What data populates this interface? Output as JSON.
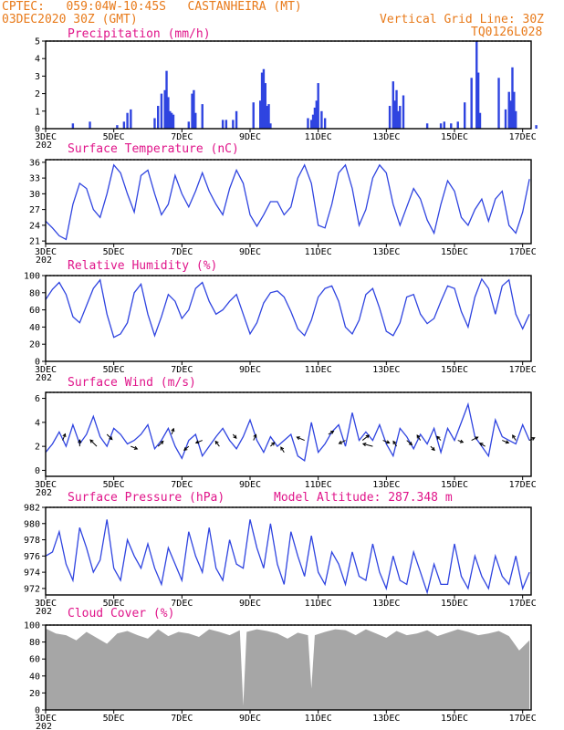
{
  "header": {
    "line1_left": "CPTEC:   059:04W-10:45S   CASTANHEIRA (MT)",
    "line2_left": "03DEC2020 30Z (GMT)",
    "line1_right": "Vertical Grid Line: 30Z",
    "line2_right": "TQ0126L028"
  },
  "colors": {
    "header": "#e87a1a",
    "title": "#e0158a",
    "line": "#2f44e0",
    "bar": "#2f44e0",
    "cloud": "#a6a6a6",
    "arrow": "#000000"
  },
  "x_axis": {
    "days": [
      3,
      17.25
    ],
    "tick_labels": [
      "3DEC",
      "5DEC",
      "7DEC",
      "9DEC",
      "11DEC",
      "13DEC",
      "15DEC",
      "17DEC"
    ],
    "tick_days": [
      3,
      5,
      7,
      9,
      11,
      13,
      15,
      17
    ],
    "stub_label": "202"
  },
  "chart_data": [
    {
      "type": "bar",
      "title": "Precipitation (mm/h)",
      "ylim": [
        0,
        5
      ],
      "yticks": [
        0,
        1,
        2,
        3,
        4,
        5
      ],
      "x_days": [
        3.8,
        4.3,
        5.1,
        5.3,
        5.4,
        5.5,
        6.2,
        6.3,
        6.4,
        6.5,
        6.55,
        6.6,
        6.65,
        6.7,
        6.75,
        7.2,
        7.3,
        7.35,
        7.4,
        7.6,
        8.2,
        8.3,
        8.5,
        8.6,
        9.1,
        9.3,
        9.35,
        9.4,
        9.45,
        9.5,
        9.55,
        9.6,
        10.7,
        10.8,
        10.85,
        10.9,
        10.95,
        11.0,
        11.1,
        11.2,
        13.1,
        13.2,
        13.25,
        13.3,
        13.35,
        13.4,
        13.5,
        14.2,
        14.6,
        14.7,
        14.9,
        15.1,
        15.3,
        15.5,
        15.65,
        15.7,
        15.75,
        16.3,
        16.5,
        16.6,
        16.65,
        16.7,
        16.75,
        16.8,
        17.4
      ],
      "values": [
        0.3,
        0.4,
        0.2,
        0.4,
        0.9,
        1.1,
        0.6,
        1.3,
        2.0,
        2.2,
        3.3,
        1.8,
        1.0,
        0.9,
        0.8,
        0.4,
        2.0,
        2.2,
        0.9,
        1.4,
        0.5,
        0.5,
        0.5,
        1.0,
        1.5,
        1.6,
        3.2,
        3.4,
        2.6,
        1.3,
        1.4,
        0.3,
        0.6,
        0.5,
        0.8,
        1.2,
        1.6,
        2.6,
        1.0,
        0.6,
        1.3,
        2.7,
        1.6,
        2.2,
        1.0,
        1.3,
        1.9,
        0.3,
        0.3,
        0.4,
        0.3,
        0.4,
        1.5,
        2.9,
        5.0,
        3.2,
        0.9,
        2.9,
        1.1,
        2.1,
        1.6,
        3.5,
        2.1,
        1.0,
        0.2
      ]
    },
    {
      "type": "line",
      "title": "Surface Temperature (nC)",
      "ylim": [
        20.5,
        36.5
      ],
      "yticks": [
        21,
        24,
        27,
        30,
        33,
        36
      ],
      "x_days": [
        3.0,
        3.2,
        3.4,
        3.6,
        3.8,
        4.0,
        4.2,
        4.4,
        4.6,
        4.8,
        5.0,
        5.2,
        5.4,
        5.6,
        5.8,
        6.0,
        6.2,
        6.4,
        6.6,
        6.8,
        7.0,
        7.2,
        7.4,
        7.6,
        7.8,
        8.0,
        8.2,
        8.4,
        8.6,
        8.8,
        9.0,
        9.2,
        9.4,
        9.6,
        9.8,
        10.0,
        10.2,
        10.4,
        10.6,
        10.8,
        11.0,
        11.2,
        11.4,
        11.6,
        11.8,
        12.0,
        12.2,
        12.4,
        12.6,
        12.8,
        13.0,
        13.2,
        13.4,
        13.6,
        13.8,
        14.0,
        14.2,
        14.4,
        14.6,
        14.8,
        15.0,
        15.2,
        15.4,
        15.6,
        15.8,
        16.0,
        16.2,
        16.4,
        16.6,
        16.8,
        17.0,
        17.2
      ],
      "values": [
        24.8,
        23.5,
        22.0,
        21.3,
        28.0,
        32.0,
        31.0,
        27.0,
        25.5,
        30.0,
        35.5,
        34.0,
        30.0,
        26.5,
        33.5,
        34.5,
        30.0,
        26.0,
        28.0,
        33.5,
        30.0,
        27.5,
        30.5,
        34.0,
        30.5,
        28.0,
        26.0,
        31.0,
        34.5,
        32.0,
        26.0,
        23.8,
        26.0,
        28.5,
        28.5,
        26.0,
        27.5,
        33.0,
        35.5,
        32.0,
        24.0,
        23.5,
        28.0,
        34.0,
        35.5,
        31.0,
        24.0,
        27.0,
        33.0,
        35.5,
        34.0,
        28.0,
        24.0,
        27.5,
        31.0,
        29.0,
        25.0,
        22.5,
        28.0,
        32.5,
        30.5,
        25.5,
        24.0,
        27.0,
        29.0,
        24.8,
        29.0,
        30.5,
        24.0,
        22.5,
        26.5,
        32.8
      ]
    },
    {
      "type": "line",
      "title": "Relative Humidity (%)",
      "ylim": [
        0,
        100
      ],
      "yticks": [
        0,
        20,
        40,
        60,
        80,
        100
      ],
      "x_days": [
        3.0,
        3.2,
        3.4,
        3.6,
        3.8,
        4.0,
        4.2,
        4.4,
        4.6,
        4.8,
        5.0,
        5.2,
        5.4,
        5.6,
        5.8,
        6.0,
        6.2,
        6.4,
        6.6,
        6.8,
        7.0,
        7.2,
        7.4,
        7.6,
        7.8,
        8.0,
        8.2,
        8.4,
        8.6,
        8.8,
        9.0,
        9.2,
        9.4,
        9.6,
        9.8,
        10.0,
        10.2,
        10.4,
        10.6,
        10.8,
        11.0,
        11.2,
        11.4,
        11.6,
        11.8,
        12.0,
        12.2,
        12.4,
        12.6,
        12.8,
        13.0,
        13.2,
        13.4,
        13.6,
        13.8,
        14.0,
        14.2,
        14.4,
        14.6,
        14.8,
        15.0,
        15.2,
        15.4,
        15.6,
        15.8,
        16.0,
        16.2,
        16.4,
        16.6,
        16.8,
        17.0,
        17.2
      ],
      "values": [
        72,
        84,
        92,
        78,
        52,
        45,
        65,
        85,
        95,
        55,
        28,
        32,
        45,
        80,
        90,
        55,
        30,
        52,
        78,
        70,
        50,
        60,
        85,
        92,
        70,
        55,
        60,
        70,
        78,
        55,
        32,
        45,
        68,
        80,
        82,
        75,
        58,
        38,
        30,
        48,
        75,
        85,
        88,
        70,
        40,
        32,
        48,
        78,
        85,
        62,
        35,
        30,
        45,
        75,
        78,
        55,
        44,
        50,
        70,
        88,
        85,
        58,
        40,
        75,
        96,
        85,
        55,
        88,
        95,
        55,
        38,
        55
      ]
    },
    {
      "type": "line",
      "title": "Surface Wind (m/s)",
      "ylim": [
        -0.5,
        6.5
      ],
      "yticks": [
        0,
        2,
        4,
        6
      ],
      "x_days": [
        3.0,
        3.2,
        3.4,
        3.6,
        3.8,
        4.0,
        4.2,
        4.4,
        4.6,
        4.8,
        5.0,
        5.2,
        5.4,
        5.6,
        5.8,
        6.0,
        6.2,
        6.4,
        6.6,
        6.8,
        7.0,
        7.2,
        7.4,
        7.6,
        7.8,
        8.0,
        8.2,
        8.4,
        8.6,
        8.8,
        9.0,
        9.2,
        9.4,
        9.6,
        9.8,
        10.0,
        10.2,
        10.4,
        10.6,
        10.8,
        11.0,
        11.2,
        11.4,
        11.6,
        11.8,
        12.0,
        12.2,
        12.4,
        12.6,
        12.8,
        13.0,
        13.2,
        13.4,
        13.6,
        13.8,
        14.0,
        14.2,
        14.4,
        14.6,
        14.8,
        15.0,
        15.2,
        15.4,
        15.6,
        15.8,
        16.0,
        16.2,
        16.4,
        16.6,
        16.8,
        17.0,
        17.2
      ],
      "values": [
        1.5,
        2.2,
        3.2,
        2.0,
        3.8,
        2.2,
        3.0,
        4.5,
        2.8,
        2.0,
        3.5,
        3.0,
        2.2,
        2.5,
        3.0,
        3.8,
        1.8,
        2.5,
        3.5,
        2.0,
        1.0,
        2.5,
        3.0,
        1.2,
        2.0,
        2.8,
        3.5,
        2.5,
        1.8,
        2.8,
        4.2,
        2.5,
        1.5,
        2.8,
        2.0,
        2.5,
        3.0,
        1.2,
        0.8,
        4.0,
        1.5,
        2.2,
        3.2,
        3.8,
        2.0,
        4.8,
        2.5,
        3.2,
        2.5,
        3.8,
        2.2,
        1.2,
        3.5,
        2.8,
        1.8,
        3.0,
        2.2,
        3.5,
        1.5,
        3.5,
        2.5,
        4.0,
        5.5,
        2.8,
        2.0,
        1.2,
        4.2,
        2.8,
        2.5,
        2.2,
        3.8,
        2.5
      ],
      "arrows": {
        "x_days": [
          3.5,
          4.0,
          4.5,
          4.8,
          5.5,
          6.3,
          6.7,
          7.2,
          7.6,
          8.1,
          8.5,
          9.1,
          9.6,
          10.0,
          10.6,
          11.3,
          11.8,
          12.3,
          12.6,
          12.9,
          13.3,
          13.6,
          14.0,
          14.3,
          14.6,
          15.1,
          15.5,
          15.9,
          16.4,
          16.8,
          17.2
        ],
        "y_values": [
          2.5,
          2.0,
          2.0,
          3.0,
          2.0,
          2.0,
          3.0,
          2.0,
          2.5,
          2.0,
          3.0,
          2.5,
          2.0,
          1.5,
          2.5,
          3.0,
          2.5,
          2.5,
          2.0,
          2.5,
          2.0,
          2.5,
          2.5,
          2.0,
          2.5,
          2.5,
          2.5,
          2.0,
          2.5,
          2.5,
          2.5
        ],
        "u": [
          0.4,
          0.0,
          -1.0,
          0.8,
          1.0,
          0.8,
          0.3,
          -0.7,
          -1.0,
          -0.6,
          0.5,
          0.4,
          0.6,
          -0.5,
          -1.2,
          0.8,
          -1.0,
          1.0,
          -1.5,
          1.0,
          -0.5,
          0.8,
          -0.5,
          0.6,
          -0.6,
          0.8,
          1.0,
          -0.8,
          1.0,
          -0.5,
          0.8
        ],
        "v": [
          1.0,
          1.0,
          1.0,
          -0.8,
          -0.4,
          0.8,
          0.9,
          -0.6,
          -0.4,
          0.8,
          -0.6,
          0.9,
          0.6,
          0.8,
          0.5,
          0.5,
          -0.5,
          0.8,
          0.4,
          -0.4,
          0.8,
          -0.7,
          0.8,
          -0.6,
          0.6,
          -0.3,
          0.5,
          0.5,
          -0.4,
          0.8,
          0.4
        ]
      }
    },
    {
      "type": "line",
      "title": "Surface Pressure (hPa)",
      "annotation": "Model Altitude: 287.348 m",
      "ylim": [
        971.2,
        982.0
      ],
      "yticks": [
        972,
        974,
        976,
        978,
        980,
        982
      ],
      "x_days": [
        3.0,
        3.2,
        3.4,
        3.6,
        3.8,
        4.0,
        4.2,
        4.4,
        4.6,
        4.8,
        5.0,
        5.2,
        5.4,
        5.6,
        5.8,
        6.0,
        6.2,
        6.4,
        6.6,
        6.8,
        7.0,
        7.2,
        7.4,
        7.6,
        7.8,
        8.0,
        8.2,
        8.4,
        8.6,
        8.8,
        9.0,
        9.2,
        9.4,
        9.6,
        9.8,
        10.0,
        10.2,
        10.4,
        10.6,
        10.8,
        11.0,
        11.2,
        11.4,
        11.6,
        11.8,
        12.0,
        12.2,
        12.4,
        12.6,
        12.8,
        13.0,
        13.2,
        13.4,
        13.6,
        13.8,
        14.0,
        14.2,
        14.4,
        14.6,
        14.8,
        15.0,
        15.2,
        15.4,
        15.6,
        15.8,
        16.0,
        16.2,
        16.4,
        16.6,
        16.8,
        17.0,
        17.2
      ],
      "values": [
        976.0,
        976.5,
        979.0,
        975.0,
        973.0,
        979.5,
        977.0,
        974.0,
        975.5,
        980.5,
        974.5,
        973.0,
        978.0,
        976.0,
        974.5,
        977.5,
        974.5,
        972.5,
        977.0,
        975.0,
        973.0,
        979.0,
        976.0,
        974.0,
        979.5,
        974.5,
        973.0,
        978.0,
        975.0,
        974.5,
        980.5,
        977.0,
        974.5,
        980.0,
        975.0,
        972.5,
        979.0,
        976.0,
        973.5,
        978.5,
        974.0,
        972.5,
        976.5,
        975.0,
        972.5,
        976.5,
        973.5,
        973.0,
        977.5,
        974.0,
        972.0,
        976.0,
        973.0,
        972.5,
        976.5,
        974.0,
        971.5,
        975.0,
        972.5,
        972.5,
        977.5,
        973.5,
        972.0,
        976.0,
        973.5,
        972.0,
        976.0,
        973.5,
        972.5,
        976.0,
        972.0,
        974.0
      ]
    },
    {
      "type": "area",
      "title": "Cloud Cover (%)",
      "ylim": [
        0,
        100
      ],
      "yticks": [
        0,
        20,
        40,
        60,
        80,
        100
      ],
      "x_days": [
        3.0,
        3.3,
        3.6,
        3.9,
        4.2,
        4.5,
        4.8,
        5.1,
        5.4,
        5.7,
        6.0,
        6.3,
        6.6,
        6.9,
        7.2,
        7.5,
        7.8,
        8.1,
        8.4,
        8.7,
        8.8,
        8.9,
        9.2,
        9.5,
        9.8,
        10.1,
        10.4,
        10.7,
        10.8,
        10.9,
        11.2,
        11.5,
        11.8,
        12.1,
        12.4,
        12.7,
        13.0,
        13.3,
        13.6,
        13.9,
        14.2,
        14.5,
        14.8,
        15.1,
        15.4,
        15.7,
        16.0,
        16.3,
        16.6,
        16.9,
        17.2
      ],
      "values": [
        96,
        90,
        88,
        82,
        92,
        85,
        78,
        90,
        93,
        88,
        84,
        95,
        87,
        92,
        90,
        86,
        95,
        92,
        88,
        94,
        5,
        92,
        95,
        93,
        90,
        84,
        91,
        88,
        25,
        88,
        92,
        95,
        94,
        88,
        95,
        90,
        85,
        93,
        88,
        90,
        94,
        87,
        91,
        95,
        92,
        88,
        90,
        93,
        87,
        70,
        82
      ]
    }
  ]
}
